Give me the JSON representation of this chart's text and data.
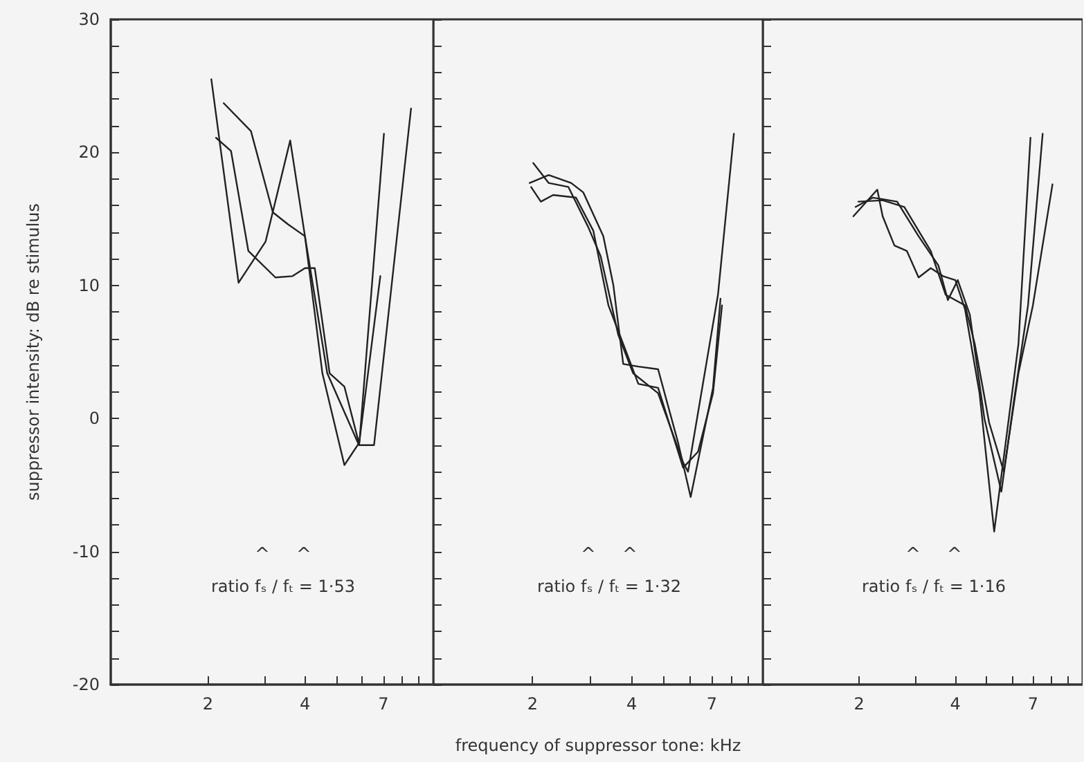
{
  "chart_data": [
    {
      "type": "line",
      "ylabel": "suppressor intensity: dB re stimulus",
      "log": "x",
      "grid": false,
      "marker": "none",
      "line_style": "solid",
      "xlim": [
        1,
        10
      ],
      "xticks": [
        2,
        {
          "value": 3,
          "label": null
        },
        4,
        {
          "value": 5,
          "label": null
        },
        {
          "value": 6,
          "label": null
        },
        7,
        {
          "value": 8,
          "label": null
        },
        {
          "value": 9,
          "label": null
        }
      ],
      "ylim": [
        -20,
        30
      ],
      "yticks": [
        -20,
        {
          "value": -18,
          "label": null
        },
        {
          "value": -16,
          "label": null
        },
        {
          "value": -14,
          "label": null
        },
        {
          "value": -12,
          "label": null
        },
        -10,
        {
          "value": -8,
          "label": null
        },
        {
          "value": -6,
          "label": null
        },
        {
          "value": -4,
          "label": null
        },
        {
          "value": -2,
          "label": null
        },
        0,
        {
          "value": 2,
          "label": null
        },
        {
          "value": 4,
          "label": null
        },
        {
          "value": 6,
          "label": null
        },
        {
          "value": 8,
          "label": null
        },
        10,
        {
          "value": 12,
          "label": null
        },
        {
          "value": 14,
          "label": null
        },
        {
          "value": 16,
          "label": null
        },
        {
          "value": 18,
          "label": null
        },
        20,
        {
          "value": 22,
          "label": null
        },
        {
          "value": 24,
          "label": null
        },
        {
          "value": 26,
          "label": null
        },
        {
          "value": 28,
          "label": null
        },
        30
      ],
      "series": [
        {
          "color": "#222222",
          "x": [
            2.05,
            2.49,
            3.02,
            3.6,
            4.0,
            4.53,
            5.3,
            5.9,
            7.03
          ],
          "values": [
            25.5,
            10.2,
            13.3,
            20.9,
            13.7,
            3.4,
            -3.5,
            -1.8,
            21.4
          ]
        },
        {
          "color": "#222222",
          "x": [
            2.12,
            2.36,
            2.67,
            3.24,
            3.66,
            4.0,
            4.29,
            4.77,
            5.3,
            5.9,
            6.55,
            8.53
          ],
          "values": [
            21.1,
            20.1,
            12.6,
            10.6,
            10.7,
            11.3,
            11.3,
            3.4,
            2.4,
            -2.0,
            -2.0,
            23.3
          ]
        },
        {
          "color": "#222222",
          "x": [
            2.24,
            2.72,
            3.18,
            3.54,
            4.0,
            4.69,
            5.88,
            6.85
          ],
          "values": [
            23.7,
            21.6,
            15.5,
            14.6,
            13.7,
            3.4,
            -2.0,
            10.7
          ]
        }
      ],
      "annotations": [
        "^",
        "^",
        "ratio fₛ / fₜ = 1·53"
      ]
    },
    {
      "type": "line",
      "xlabel": "frequency of suppressor tone: kHz",
      "log": "x",
      "grid": false,
      "marker": "none",
      "line_style": "solid",
      "tick_labels": "x",
      "xlim": [
        1,
        10
      ],
      "xticks": [
        2,
        {
          "value": 3,
          "label": null
        },
        4,
        {
          "value": 5,
          "label": null
        },
        {
          "value": 6,
          "label": null
        },
        7,
        {
          "value": 8,
          "label": null
        },
        {
          "value": 9,
          "label": null
        }
      ],
      "ylim": [
        -20,
        30
      ],
      "yticks": [
        -20,
        {
          "value": -18,
          "label": null
        },
        {
          "value": -16,
          "label": null
        },
        {
          "value": -14,
          "label": null
        },
        {
          "value": -12,
          "label": null
        },
        -10,
        {
          "value": -8,
          "label": null
        },
        {
          "value": -6,
          "label": null
        },
        {
          "value": -4,
          "label": null
        },
        {
          "value": -2,
          "label": null
        },
        0,
        {
          "value": 2,
          "label": null
        },
        {
          "value": 4,
          "label": null
        },
        {
          "value": 6,
          "label": null
        },
        {
          "value": 8,
          "label": null
        },
        10,
        {
          "value": 12,
          "label": null
        },
        {
          "value": 14,
          "label": null
        },
        {
          "value": 16,
          "label": null
        },
        {
          "value": 18,
          "label": null
        },
        20,
        {
          "value": 22,
          "label": null
        },
        {
          "value": 24,
          "label": null
        },
        {
          "value": 26,
          "label": null
        },
        {
          "value": 28,
          "label": null
        },
        30
      ],
      "series": [
        {
          "color": "#222222",
          "x": [
            2.01,
            2.24,
            2.57,
            2.95,
            3.22,
            3.64,
            4.04,
            4.81,
            5.73,
            5.93,
            7.31,
            8.17
          ],
          "values": [
            19.2,
            17.7,
            17.4,
            14.4,
            12.2,
            6.3,
            3.4,
            1.9,
            -3.3,
            -4.0,
            9.3,
            21.4
          ]
        },
        {
          "color": "#222222",
          "x": [
            1.96,
            2.24,
            2.62,
            2.85,
            3.28,
            3.52,
            3.77,
            4.19,
            4.81,
            5.53,
            6.04,
            7.06,
            7.44
          ],
          "values": [
            17.7,
            18.3,
            17.7,
            17.0,
            13.7,
            10.0,
            4.1,
            3.9,
            3.7,
            -1.8,
            -5.9,
            2.3,
            9.0
          ]
        },
        {
          "color": "#222222",
          "x": [
            1.98,
            2.12,
            2.31,
            2.71,
            3.06,
            3.4,
            3.77,
            4.19,
            4.81,
            5.73,
            6.36,
            7.06,
            7.52
          ],
          "values": [
            17.4,
            16.3,
            16.8,
            16.6,
            14.1,
            8.5,
            5.6,
            2.6,
            2.3,
            -3.7,
            -2.5,
            1.9,
            8.5
          ]
        }
      ],
      "annotations": [
        "^",
        "^",
        "ratio fₛ / fₜ = 1·32"
      ]
    },
    {
      "type": "line",
      "log": "x",
      "grid": false,
      "marker": "none",
      "line_style": "solid",
      "tick_labels": "x",
      "xlim": [
        1,
        10
      ],
      "xticks": [
        2,
        {
          "value": 3,
          "label": null
        },
        4,
        {
          "value": 5,
          "label": null
        },
        {
          "value": 6,
          "label": null
        },
        7,
        {
          "value": 8,
          "label": null
        },
        {
          "value": 9,
          "label": null
        }
      ],
      "ylim": [
        -20,
        30
      ],
      "yticks": [
        -20,
        {
          "value": -18,
          "label": null
        },
        {
          "value": -16,
          "label": null
        },
        {
          "value": -14,
          "label": null
        },
        {
          "value": -12,
          "label": null
        },
        -10,
        {
          "value": -8,
          "label": null
        },
        {
          "value": -6,
          "label": null
        },
        {
          "value": -4,
          "label": null
        },
        {
          "value": -2,
          "label": null
        },
        0,
        {
          "value": 2,
          "label": null
        },
        {
          "value": 4,
          "label": null
        },
        {
          "value": 6,
          "label": null
        },
        {
          "value": 8,
          "label": null
        },
        10,
        {
          "value": 12,
          "label": null
        },
        {
          "value": 14,
          "label": null
        },
        {
          "value": 16,
          "label": null
        },
        {
          "value": 18,
          "label": null
        },
        20,
        {
          "value": 22,
          "label": null
        },
        {
          "value": 24,
          "label": null
        },
        {
          "value": 26,
          "label": null
        },
        {
          "value": 28,
          "label": null
        },
        30
      ],
      "series": [
        {
          "color": "#222222",
          "x": [
            1.92,
            2.28,
            2.37,
            2.58,
            2.82,
            3.07,
            3.35,
            3.66,
            4.0,
            4.29,
            4.76,
            5.29,
            6.3,
            6.87
          ],
          "values": [
            15.2,
            17.2,
            15.2,
            13.0,
            12.6,
            10.6,
            11.3,
            10.7,
            10.4,
            8.2,
            1.9,
            -8.5,
            5.6,
            21.1
          ]
        },
        {
          "color": "#222222",
          "x": [
            1.95,
            2.21,
            2.63,
            3.07,
            3.54,
            3.79,
            4.07,
            4.44,
            4.93,
            5.57,
            6.08,
            6.75,
            7.5
          ],
          "values": [
            15.9,
            16.6,
            16.3,
            13.7,
            11.5,
            8.9,
            10.4,
            7.8,
            0.0,
            -5.5,
            1.1,
            8.5,
            21.4
          ]
        },
        {
          "color": "#222222",
          "x": [
            1.99,
            2.37,
            2.77,
            3.35,
            3.73,
            4.0,
            4.29,
            4.6,
            5.1,
            5.67,
            6.3,
            6.99,
            8.05
          ],
          "values": [
            16.3,
            16.4,
            15.9,
            12.6,
            9.3,
            8.9,
            8.5,
            5.6,
            -0.3,
            -4.0,
            3.4,
            8.5,
            17.6
          ]
        }
      ],
      "annotations": [
        "^",
        "^",
        "ratio fₛ / fₜ = 1·16"
      ]
    }
  ]
}
